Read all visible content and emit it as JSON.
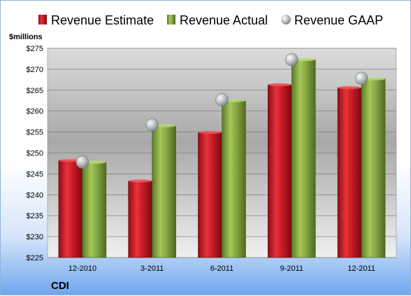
{
  "chart_data": {
    "type": "bar",
    "unit_label": "$millions",
    "company": "CDI",
    "categories": [
      "12-2010",
      "3-2011",
      "6-2011",
      "9-2011",
      "12-2011"
    ],
    "series": [
      {
        "name": "Revenue Estimate",
        "kind": "bar",
        "color": "#d0202a",
        "values": [
          248.2,
          243.3,
          254.9,
          266.3,
          265.6
        ]
      },
      {
        "name": "Revenue Actual",
        "kind": "bar",
        "color": "#8db045",
        "values": [
          247.8,
          256.5,
          262.5,
          272.3,
          267.7
        ]
      },
      {
        "name": "Revenue GAAP",
        "kind": "marker",
        "color": "#b8bcc0",
        "values": [
          247.8,
          256.7,
          262.7,
          272.3,
          267.8
        ]
      }
    ],
    "y_ticks": [
      "$225",
      "$230",
      "$235",
      "$240",
      "$245",
      "$250",
      "$255",
      "$260",
      "$265",
      "$270",
      "$275"
    ],
    "ylim": [
      225,
      275
    ],
    "grid": true,
    "legend_position": "top"
  }
}
